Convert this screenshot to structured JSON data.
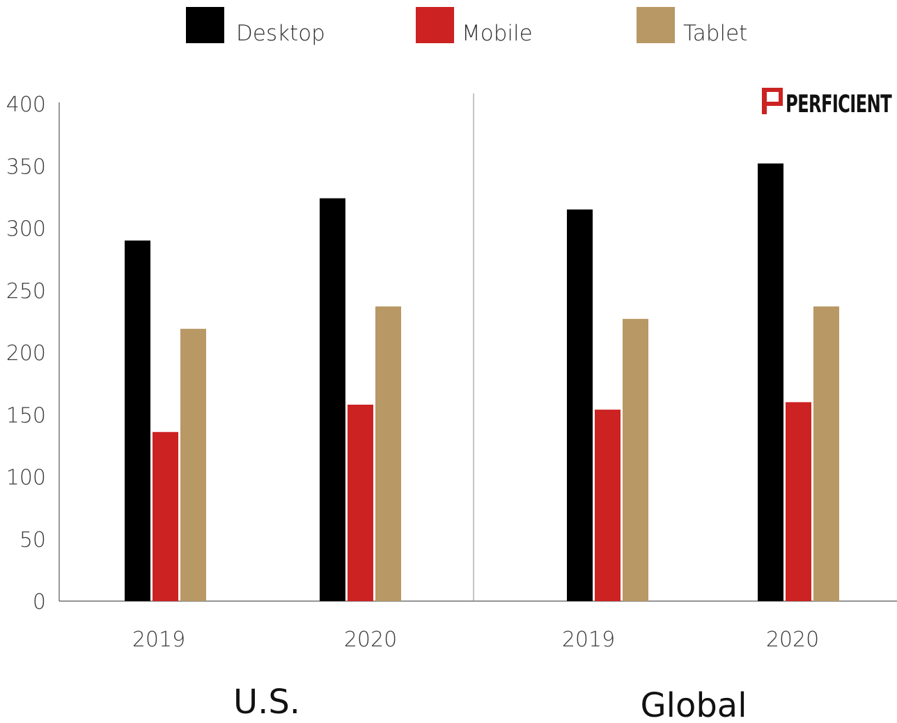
{
  "logo": {
    "text": "PERFICIENT",
    "accent_color": "#cc2222"
  },
  "chart_data": {
    "type": "bar",
    "legend": {
      "placement": "top-center",
      "entries": [
        {
          "name": "Desktop",
          "color": "#000000"
        },
        {
          "name": "Mobile",
          "color": "#cc2222"
        },
        {
          "name": "Tablet",
          "color": "#b89864"
        }
      ]
    },
    "ylim": [
      0,
      400
    ],
    "yticks": [
      "0",
      "50",
      "100",
      "150",
      "200",
      "250",
      "300",
      "350",
      "400"
    ],
    "grid": false,
    "groups": [
      {
        "label": "U.S.",
        "categories": [
          "2019",
          "2020"
        ],
        "series": [
          {
            "name": "Desktop",
            "values": [
              290,
              324
            ]
          },
          {
            "name": "Mobile",
            "values": [
              136,
              158
            ]
          },
          {
            "name": "Tablet",
            "values": [
              219,
              237
            ]
          }
        ]
      },
      {
        "label": "Global",
        "categories": [
          "2019",
          "2020"
        ],
        "series": [
          {
            "name": "Desktop",
            "values": [
              315,
              352
            ]
          },
          {
            "name": "Mobile",
            "values": [
              154,
              160
            ]
          },
          {
            "name": "Tablet",
            "values": [
              227,
              237
            ]
          }
        ]
      }
    ]
  }
}
